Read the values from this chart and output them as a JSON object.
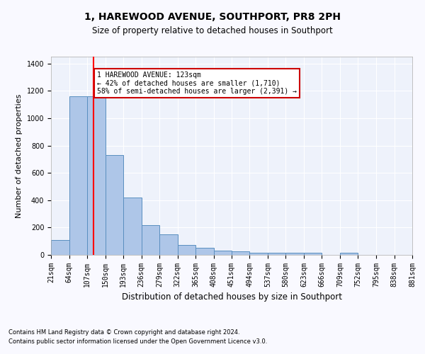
{
  "title": "1, HAREWOOD AVENUE, SOUTHPORT, PR8 2PH",
  "subtitle": "Size of property relative to detached houses in Southport",
  "xlabel": "Distribution of detached houses by size in Southport",
  "ylabel": "Number of detached properties",
  "footnote1": "Contains HM Land Registry data © Crown copyright and database right 2024.",
  "footnote2": "Contains public sector information licensed under the Open Government Licence v3.0.",
  "property_label": "1 HAREWOOD AVENUE: 123sqm",
  "annotation_line1": "← 42% of detached houses are smaller (1,710)",
  "annotation_line2": "58% of semi-detached houses are larger (2,391) →",
  "bar_edges": [
    21,
    64,
    107,
    150,
    193,
    236,
    279,
    322,
    365,
    408,
    451,
    494,
    537,
    580,
    623,
    666,
    709,
    752,
    795,
    838,
    881
  ],
  "bar_values": [
    107,
    1160,
    1160,
    730,
    420,
    215,
    150,
    75,
    50,
    32,
    25,
    18,
    15,
    15,
    15,
    0,
    15,
    0,
    0,
    0
  ],
  "bar_color": "#aec6e8",
  "bar_edge_color": "#5a8fc0",
  "red_line_x": 123,
  "ylim": [
    0,
    1450
  ],
  "yticks": [
    0,
    200,
    400,
    600,
    800,
    1000,
    1200,
    1400
  ],
  "background_color": "#eef2fb",
  "grid_color": "#ffffff",
  "fig_background": "#f9f9ff",
  "annotation_box_color": "#cc0000",
  "title_fontsize": 10,
  "subtitle_fontsize": 8.5,
  "ylabel_fontsize": 8,
  "xlabel_fontsize": 8.5,
  "tick_fontsize": 7,
  "footnote_fontsize": 6,
  "annot_fontsize": 7
}
